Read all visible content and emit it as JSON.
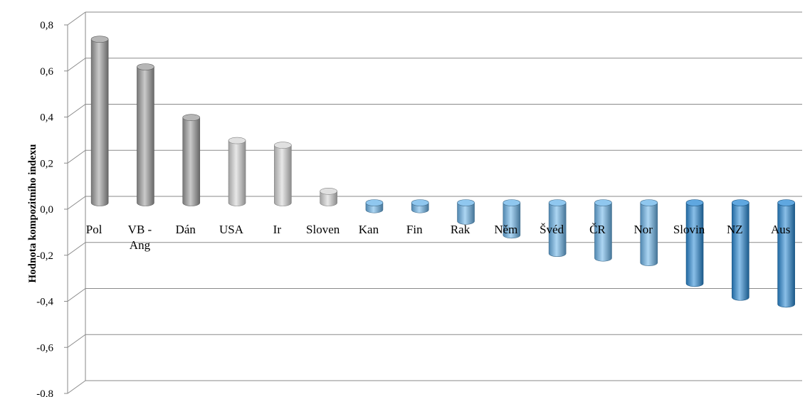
{
  "chart_data": {
    "type": "bar",
    "title": "",
    "xlabel": "",
    "ylabel": "Hodnota kompozitního indexu",
    "ylim": [
      -0.8,
      0.8
    ],
    "yticks": [
      "0,8",
      "0,6",
      "0,4",
      "0,2",
      "0,0",
      "-0,2",
      "-0,4",
      "-0,6",
      "-0,8"
    ],
    "yticks_values": [
      0.8,
      0.6,
      0.4,
      0.2,
      0.0,
      -0.2,
      -0.4,
      -0.6,
      -0.8
    ],
    "grid": true,
    "categories": [
      "Pol",
      "VB - Ang",
      "Dán",
      "USA",
      "Ir",
      "Sloven",
      "Kan",
      "Fin",
      "Rak",
      "Něm",
      "Švéd",
      "ČR",
      "Nor",
      "Slovin",
      "NZ",
      "Aus"
    ],
    "values": [
      0.71,
      0.59,
      0.37,
      0.27,
      0.25,
      0.05,
      -0.03,
      -0.03,
      -0.08,
      -0.14,
      -0.22,
      -0.24,
      -0.26,
      -0.35,
      -0.41,
      -0.44
    ],
    "colors": [
      "#9e9e9e",
      "#9e9e9e",
      "#9e9e9e",
      "#d6d6d6",
      "#d6d6d6",
      "#d6d6d6",
      "#6ab4ea",
      "#6ab4ea",
      "#6ab4ea",
      "#6ab4ea",
      "#6ab4ea",
      "#6ab4ea",
      "#6ab4ea",
      "#2a8ad6",
      "#2a8ad6",
      "#2a8ad6"
    ]
  }
}
